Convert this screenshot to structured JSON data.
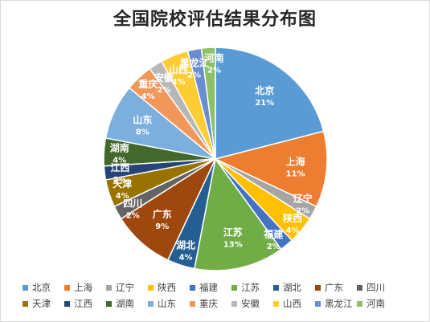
{
  "chart_data": {
    "type": "pie",
    "title": "全国院校评估结果分布图",
    "legend_position": "bottom",
    "slices": [
      {
        "label": "北京",
        "value": 21,
        "pct": "21%",
        "color": "#5b9bd5"
      },
      {
        "label": "上海",
        "value": 11,
        "pct": "11%",
        "color": "#ed7d31"
      },
      {
        "label": "辽宁",
        "value": 2,
        "pct": "2%",
        "color": "#a5a5a5"
      },
      {
        "label": "陕西",
        "value": 4,
        "pct": "4%",
        "color": "#ffc000"
      },
      {
        "label": "福建",
        "value": 2,
        "pct": "2%",
        "color": "#4472c4"
      },
      {
        "label": "江苏",
        "value": 13,
        "pct": "13%",
        "color": "#70ad47"
      },
      {
        "label": "湖北",
        "value": 4,
        "pct": "4%",
        "color": "#255e91"
      },
      {
        "label": "广东",
        "value": 9,
        "pct": "9%",
        "color": "#9e480e"
      },
      {
        "label": "四川",
        "value": 2,
        "pct": "2%",
        "color": "#636363"
      },
      {
        "label": "天津",
        "value": 4,
        "pct": "4%",
        "color": "#997300"
      },
      {
        "label": "江西",
        "value": 2,
        "pct": "2%",
        "color": "#264478"
      },
      {
        "label": "湖南",
        "value": 4,
        "pct": "4%",
        "color": "#43682b"
      },
      {
        "label": "山东",
        "value": 8,
        "pct": "8%",
        "color": "#7cafdd"
      },
      {
        "label": "重庆",
        "value": 4,
        "pct": "4%",
        "color": "#f1975a"
      },
      {
        "label": "安徽",
        "value": 2,
        "pct": "2%",
        "color": "#b7b7b7"
      },
      {
        "label": "山西",
        "value": 4,
        "pct": "4%",
        "color": "#ffcd33"
      },
      {
        "label": "黑龙江",
        "value": 2,
        "pct": "2%",
        "color": "#698ed0"
      },
      {
        "label": "河南",
        "value": 2,
        "pct": "2%",
        "color": "#8cc168"
      }
    ]
  }
}
